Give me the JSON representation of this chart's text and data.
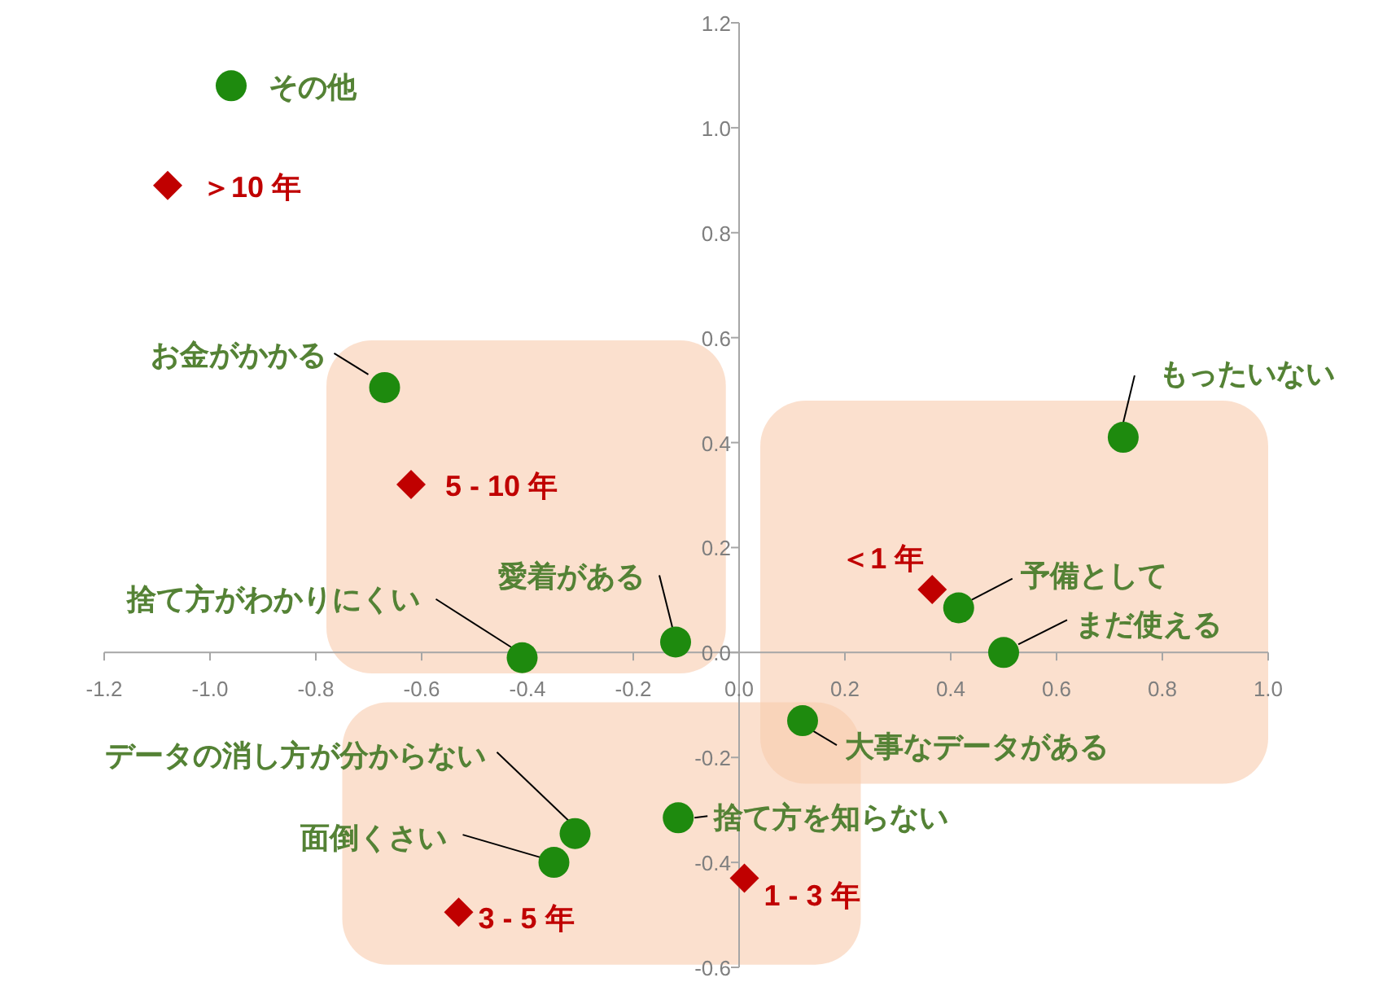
{
  "chart_data": {
    "type": "scatter",
    "grid": false,
    "xlim": [
      -1.2,
      1.0
    ],
    "xticks": [
      -1.2,
      {
        "value": -1,
        "label": "-1.0"
      },
      -0.8,
      -0.6,
      -0.4,
      -0.2,
      {
        "value": 0,
        "label": "0.0"
      },
      0.2,
      0.4,
      0.6,
      0.8,
      {
        "value": 1,
        "label": "1.0"
      }
    ],
    "ylim": [
      -0.6,
      1.2
    ],
    "yticks": [
      -0.6,
      -0.4,
      -0.2,
      {
        "value": 0,
        "label": "0.0"
      },
      0.2,
      0.4,
      0.6,
      0.8,
      {
        "value": 1,
        "label": "1.0"
      },
      1.2
    ],
    "series": [
      {
        "color": "#1e8a0e",
        "marker": "circle",
        "x": [
          -0.96,
          -0.67,
          0.726,
          0.415,
          0.5,
          0.12,
          -0.115,
          -0.31,
          -0.35,
          -0.41,
          -0.12
        ],
        "values": [
          1.08,
          0.505,
          0.41,
          0.085,
          0.0,
          -0.13,
          -0.315,
          -0.345,
          -0.4,
          -0.01,
          0.02
        ]
      },
      {
        "color": "#c00000",
        "marker": "diamond",
        "x": [
          -1.08,
          -0.62,
          0.365,
          0.01,
          -0.53
        ],
        "values": [
          0.89,
          0.32,
          0.12,
          -0.43,
          -0.495
        ]
      }
    ],
    "annotations": [
      {
        "text": "その他",
        "x": -0.96,
        "y": 1.08
      },
      {
        "text": "お金がかかる",
        "x": -0.67,
        "y": 0.505
      },
      {
        "text": "もったいない",
        "x": 0.726,
        "y": 0.41
      },
      {
        "text": "予備として",
        "x": 0.415,
        "y": 0.085
      },
      {
        "text": "まだ使える",
        "x": 0.5,
        "y": 0.0
      },
      {
        "text": "大事なデータがある",
        "x": 0.12,
        "y": -0.13
      },
      {
        "text": "捨て方を知らない",
        "x": -0.115,
        "y": -0.315
      },
      {
        "text": "データの消し方が分からない",
        "x": -0.31,
        "y": -0.345
      },
      {
        "text": "面倒くさい",
        "x": -0.35,
        "y": -0.4
      },
      {
        "text": "捨て方がわかりにくい",
        "x": -0.41,
        "y": -0.01
      },
      {
        "text": "愛着がある",
        "x": -0.12,
        "y": 0.02
      },
      {
        "text": "＞10 年",
        "x": -1.08,
        "y": 0.89
      },
      {
        "text": "5 - 10 年",
        "x": -0.62,
        "y": 0.32
      },
      {
        "text": "＜1 年",
        "x": 0.365,
        "y": 0.12
      },
      {
        "text": "1 - 3 年",
        "x": 0.01,
        "y": -0.43
      },
      {
        "text": "3 - 5 年",
        "x": -0.53,
        "y": -0.495
      }
    ]
  }
}
